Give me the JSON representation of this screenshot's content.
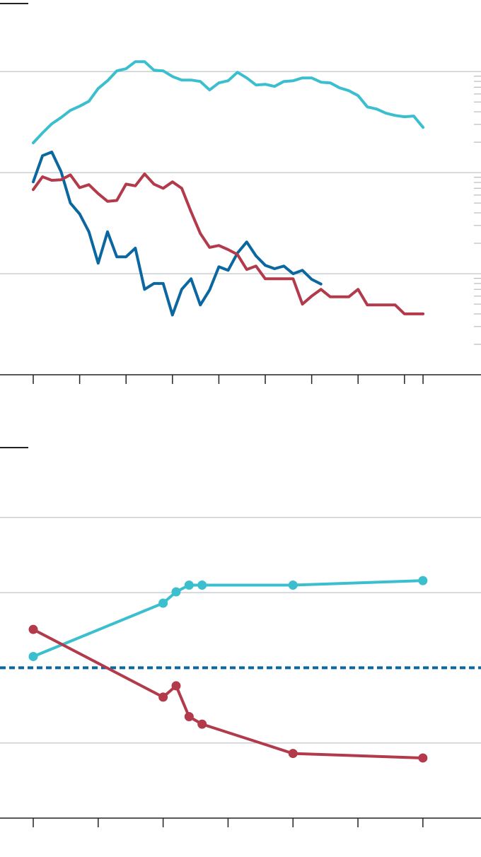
{
  "chart_data": [
    {
      "type": "line",
      "log_y": true,
      "grid": true,
      "x": [
        0,
        0.2,
        0.4,
        0.6,
        0.8,
        1,
        1.2,
        1.4,
        1.6,
        1.8,
        2,
        2.2,
        2.4,
        2.6,
        2.8,
        3,
        3.2,
        3.4,
        3.6,
        3.8,
        4,
        4.2,
        4.4,
        4.6,
        4.8,
        5,
        5.2,
        5.4,
        5.6,
        5.8,
        6,
        6.2,
        6.4,
        6.6,
        6.8,
        7,
        7.2,
        7.4,
        7.6,
        7.8,
        8,
        8.2,
        8.4
      ],
      "xlim": [
        -0.7165,
        9.649
      ],
      "xticks": [
        0,
        1,
        2,
        3,
        4,
        5,
        6,
        7,
        8,
        8.4
      ],
      "ylim": [
        1,
        3000
      ],
      "yticks": [
        1,
        10,
        100,
        1000
      ],
      "minor_yticks": [
        2,
        3,
        4,
        5,
        6,
        7,
        8,
        9,
        20,
        30,
        40,
        50,
        60,
        70,
        80,
        90,
        200,
        300,
        400,
        500,
        600,
        700,
        800,
        900
      ],
      "series": [
        {
          "color": "#3bbfcf",
          "values": [
            197,
            247,
            304,
            351,
            413,
            454,
            508,
            679,
            811,
            1016,
            1067,
            1253,
            1253,
            1033,
            1016,
            893,
            824,
            824,
            798,
            658,
            773,
            811,
            984,
            865,
            736,
            748,
            713,
            798,
            811,
            865,
            865,
            785,
            773,
            690,
            647,
            578,
            447,
            426,
            387,
            368,
            357,
            363,
            280
          ]
        },
        {
          "color": "#0b67a0",
          "values": [
            81,
            147,
            160,
            102,
            50,
            39,
            26,
            12.7,
            26,
            14.7,
            14.7,
            17.9,
            7.0,
            8.0,
            8.0,
            3.9,
            7.0,
            8.9,
            4.9,
            6.9,
            11.7,
            10.8,
            16.0,
            20.6,
            15.0,
            12.1,
            11.2,
            11.9,
            10,
            10.8,
            8.8,
            7.9,
            null,
            null,
            null,
            null,
            null,
            null,
            null,
            null,
            null,
            null,
            null
          ]
        },
        {
          "color": "#b23a4a",
          "values": [
            68,
            91,
            84,
            85,
            95,
            71,
            76,
            62,
            52,
            53,
            77,
            74,
            97,
            77,
            70,
            81,
            70,
            41,
            25,
            18.2,
            19.0,
            17.3,
            15.5,
            11.0,
            11.9,
            8.9,
            8.9,
            8.9,
            8.9,
            5.0,
            6.0,
            7.0,
            5.9,
            5.9,
            5.9,
            7.0,
            4.9,
            4.9,
            4.9,
            4.9,
            4.0,
            4.0,
            4.0
          ]
        }
      ]
    },
    {
      "type": "line",
      "markers": true,
      "grid": true,
      "x": [
        0,
        2.0,
        2.2,
        2.4,
        2.6,
        4.0,
        6.0
      ],
      "xlim": [
        -0.512,
        6.895
      ],
      "xticks": [
        0,
        1,
        2,
        3,
        4,
        5,
        6
      ],
      "ylim": [
        0,
        5
      ],
      "yticks": [
        0,
        1,
        3,
        4
      ],
      "hline": {
        "value": 2,
        "color": "#0b67a0",
        "style": "dashed"
      },
      "series": [
        {
          "color": "#3bbfcf",
          "values": [
            2.15,
            2.86,
            3.01,
            3.1,
            3.1,
            3.1,
            3.16
          ]
        },
        {
          "color": "#b23a4a",
          "values": [
            2.51,
            1.61,
            1.76,
            1.35,
            1.25,
            0.86,
            0.8
          ]
        }
      ]
    }
  ]
}
